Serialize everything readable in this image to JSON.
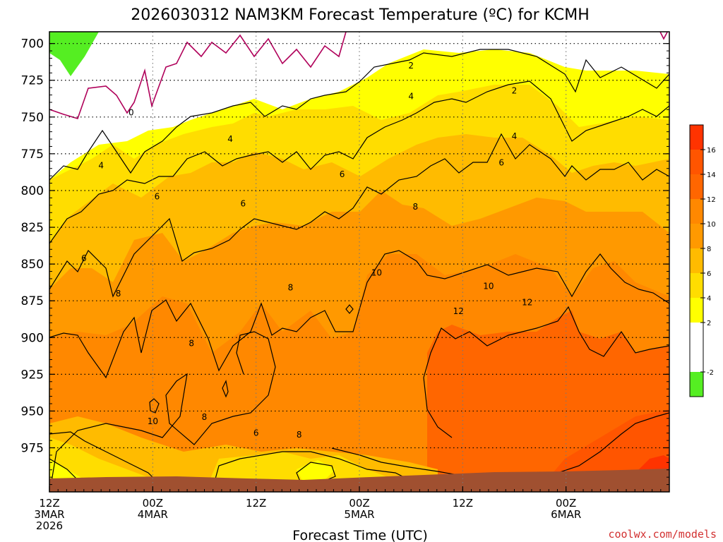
{
  "chart_data": {
    "type": "heatmap",
    "title": "2026030312 NAM3KM Forecast Temperature (ºC) for KCMH",
    "xlabel": "Forecast Time (UTC)",
    "ylabel": "",
    "credit": "coolwx.com/models",
    "x_range_hours": [
      0,
      72
    ],
    "y_range_hpa": [
      1005,
      692
    ],
    "y_ticks": [
      700,
      725,
      750,
      775,
      800,
      825,
      850,
      875,
      900,
      925,
      950,
      975
    ],
    "x_ticks": [
      {
        "hour": 0,
        "lines": [
          "12Z",
          "3MAR",
          "2026"
        ]
      },
      {
        "hour": 12,
        "lines": [
          "00Z",
          "4MAR"
        ]
      },
      {
        "hour": 24,
        "lines": [
          "12Z"
        ]
      },
      {
        "hour": 36,
        "lines": [
          "00Z",
          "5MAR"
        ]
      },
      {
        "hour": 48,
        "lines": [
          "12Z"
        ]
      },
      {
        "hour": 60,
        "lines": [
          "00Z",
          "6MAR"
        ]
      }
    ],
    "grid": true,
    "colorbar": {
      "ticks": [
        -2,
        2,
        4,
        6,
        8,
        10,
        12,
        14,
        16
      ],
      "bins": [
        {
          "min": -4,
          "max": -2,
          "color": "#55ee22"
        },
        {
          "min": -2,
          "max": 2,
          "color": "#ffffff"
        },
        {
          "min": 2,
          "max": 4,
          "color": "#ffff00"
        },
        {
          "min": 4,
          "max": 6,
          "color": "#ffdd00"
        },
        {
          "min": 6,
          "max": 8,
          "color": "#ffbb00"
        },
        {
          "min": 8,
          "max": 10,
          "color": "#ff9900"
        },
        {
          "min": 10,
          "max": 12,
          "color": "#ff8800"
        },
        {
          "min": 12,
          "max": 14,
          "color": "#ff6600"
        },
        {
          "min": 14,
          "max": 16,
          "color": "#ff5500"
        },
        {
          "min": 16,
          "max": 18,
          "color": "#ff3300"
        }
      ]
    },
    "contour_labels": [
      {
        "text": "0",
        "hour": 9.5,
        "hpa": 747
      },
      {
        "text": "2",
        "hour": 42.0,
        "hpa": 715
      },
      {
        "text": "2",
        "hour": 54.0,
        "hpa": 732
      },
      {
        "text": "4",
        "hour": 42.0,
        "hpa": 736
      },
      {
        "text": "4",
        "hour": 21.0,
        "hpa": 765
      },
      {
        "text": "4",
        "hour": 6.0,
        "hpa": 783
      },
      {
        "text": "4",
        "hour": 54.0,
        "hpa": 763
      },
      {
        "text": "6",
        "hour": 12.5,
        "hpa": 804
      },
      {
        "text": "6",
        "hour": 22.5,
        "hpa": 809
      },
      {
        "text": "6",
        "hour": 4.0,
        "hpa": 846
      },
      {
        "text": "6",
        "hour": 34.0,
        "hpa": 789
      },
      {
        "text": "6",
        "hour": 52.5,
        "hpa": 781
      },
      {
        "text": "6",
        "hour": 24.0,
        "hpa": 965
      },
      {
        "text": "8",
        "hour": 8.0,
        "hpa": 870
      },
      {
        "text": "8",
        "hour": 16.5,
        "hpa": 904
      },
      {
        "text": "8",
        "hour": 18.0,
        "hpa": 954
      },
      {
        "text": "8",
        "hour": 28.0,
        "hpa": 866
      },
      {
        "text": "8",
        "hour": 29.0,
        "hpa": 966
      },
      {
        "text": "8",
        "hour": 42.5,
        "hpa": 811
      },
      {
        "text": "10",
        "hour": 12.0,
        "hpa": 957
      },
      {
        "text": "10",
        "hour": 38.0,
        "hpa": 856
      },
      {
        "text": "10",
        "hour": 51.0,
        "hpa": 865
      },
      {
        "text": "12",
        "hour": 47.5,
        "hpa": 882
      },
      {
        "text": "12",
        "hour": 55.5,
        "hpa": 876
      }
    ],
    "ground_hpa_approx": 989
  }
}
